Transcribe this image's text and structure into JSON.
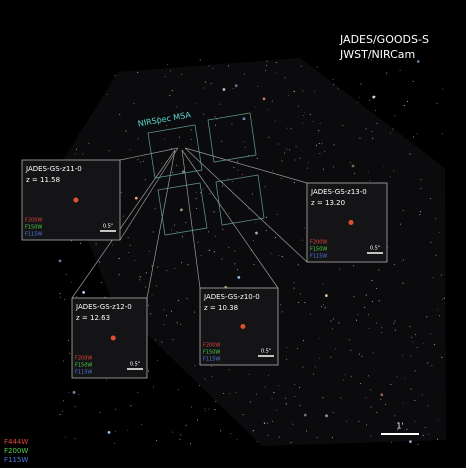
{
  "header": {
    "lines": [
      "JADES/GOODS-S",
      "JWST/NIRCam"
    ]
  },
  "msa_label": "NIRSpec MSA",
  "insets": [
    {
      "name": "JADES-GS-z11-0",
      "redshift": "z = 11.58",
      "filters": [
        "F200W",
        "F150W",
        "F115W"
      ],
      "scale": "0.5\""
    },
    {
      "name": "JADES-GS-z13-0",
      "redshift": "z = 13.20",
      "filters": [
        "F200W",
        "F150W",
        "F115W"
      ],
      "scale": "0.5\""
    },
    {
      "name": "JADES-GS-z12-0",
      "redshift": "z = 12.63",
      "filters": [
        "F200W",
        "F150W",
        "F115W"
      ],
      "scale": "0.5\""
    },
    {
      "name": "JADES-GS-z10-0",
      "redshift": "z = 10.38",
      "filters": [
        "F200W",
        "F150W",
        "F115W"
      ],
      "scale": "0.5\""
    }
  ],
  "scale_bar": "1'",
  "filters": [
    "F444W",
    "F200W",
    "F115W"
  ]
}
